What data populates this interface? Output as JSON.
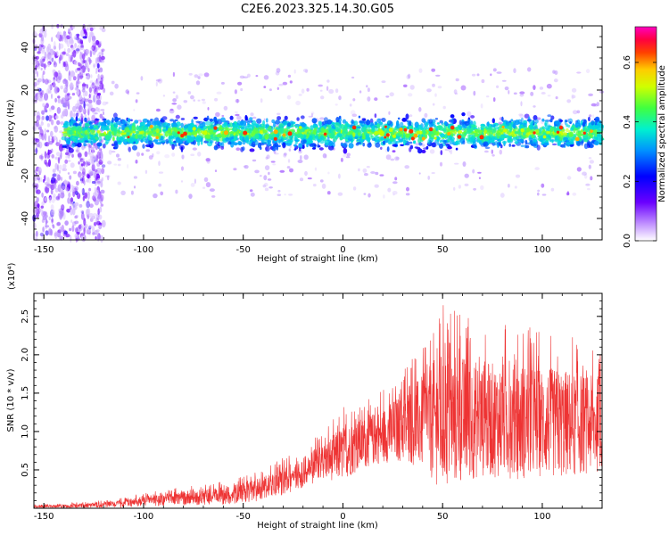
{
  "title": "C2E6.2023.325.14.30.G05",
  "colors": {
    "snr_line": "#ee3333",
    "background": "#ffffff",
    "axis": "#000000"
  },
  "chart_data": [
    {
      "type": "heatmap",
      "title": "C2E6.2023.325.14.30.G05",
      "xlabel": "Height of straight line (km)",
      "ylabel": "Frequency (Hz)",
      "xlim": [
        -155,
        130
      ],
      "ylim": [
        -50,
        50
      ],
      "x_ticks": [
        -150,
        -100,
        -50,
        0,
        50,
        100
      ],
      "y_ticks": [
        -40,
        -20,
        0,
        20,
        40
      ],
      "colorbar": {
        "label": "Normalized spectral amplitude",
        "range": [
          0.0,
          0.72
        ],
        "ticks": [
          "0.0",
          "0.2",
          "0.4",
          "0.6"
        ],
        "colormap": "rainbow (white-violet-blue-cyan-green-yellow-red-magenta)"
      },
      "description_points": {
        "band_center_hz": 0,
        "band_halfwidth_hz": 7,
        "band_start_km": -140,
        "noise_region_km": [
          -155,
          -120
        ]
      }
    },
    {
      "type": "line",
      "xlabel": "Height of straight line (km)",
      "ylabel": "SNR (10 * v/v)",
      "y_multiplier": "(x10⁴)",
      "xlim": [
        -155,
        130
      ],
      "ylim": [
        0,
        2.8
      ],
      "x_ticks": [
        -150,
        -100,
        -50,
        0,
        50,
        100
      ],
      "y_ticks": [
        "0.5",
        "1.0",
        "1.5",
        "2.0",
        "2.5"
      ],
      "series": [
        {
          "envelope_x": [
            -155,
            -130,
            -110,
            -100,
            -80,
            -60,
            -50,
            -40,
            -30,
            -20,
            -10,
            0,
            10,
            20,
            30,
            40,
            50,
            60,
            70,
            80,
            90,
            100,
            110,
            120,
            130
          ],
          "envelope_mean": [
            0.02,
            0.03,
            0.06,
            0.09,
            0.13,
            0.16,
            0.2,
            0.26,
            0.35,
            0.47,
            0.6,
            0.72,
            0.85,
            0.95,
            1.05,
            1.12,
            1.15,
            1.16,
            1.15,
            1.15,
            1.13,
            1.12,
            1.1,
            1.1,
            1.08
          ],
          "envelope_max": [
            0.05,
            0.08,
            0.14,
            0.2,
            0.28,
            0.35,
            0.42,
            0.52,
            0.66,
            0.8,
            1.0,
            1.32,
            1.4,
            1.55,
            1.8,
            2.15,
            2.7,
            2.55,
            2.4,
            2.4,
            2.4,
            2.3,
            2.3,
            2.2,
            2.1
          ]
        }
      ]
    }
  ]
}
